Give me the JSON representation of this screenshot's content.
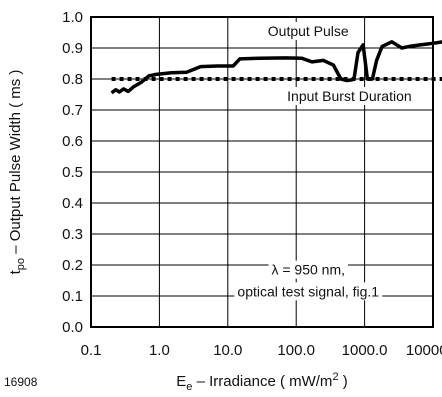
{
  "figure_id": "16908",
  "chart_data": {
    "type": "line",
    "xscale": "log",
    "xlim": [
      0.1,
      10000
    ],
    "ylim": [
      0.0,
      1.0
    ],
    "grid": true,
    "xticks": [
      "0.1",
      "1.0",
      "10.0",
      "100.0",
      "1000.0",
      "10000.0"
    ],
    "xtick_values": [
      0.1,
      1,
      10,
      100,
      1000,
      10000
    ],
    "yticks": [
      "0.0",
      "0.1",
      "0.2",
      "0.3",
      "0.4",
      "0.5",
      "0.6",
      "0.7",
      "0.8",
      "0.9",
      "1.0"
    ],
    "ytick_values": [
      0,
      0.1,
      0.2,
      0.3,
      0.4,
      0.5,
      0.6,
      0.7,
      0.8,
      0.9,
      1.0
    ],
    "ylabel_parts": {
      "sym": "t",
      "sub": "po",
      "rest": " – Output Pulse Width ( ms )"
    },
    "xlabel_parts": {
      "sym": "E",
      "sub": "e",
      "mid": " – Irradiance ( mW/m",
      "sup": "2",
      "end": " )"
    },
    "series": [
      {
        "name": "Output Pulse",
        "style": "solid",
        "color": "#000000",
        "points": [
          [
            0.2,
            0.755
          ],
          [
            0.23,
            0.765
          ],
          [
            0.26,
            0.758
          ],
          [
            0.3,
            0.768
          ],
          [
            0.35,
            0.76
          ],
          [
            0.42,
            0.775
          ],
          [
            0.55,
            0.79
          ],
          [
            0.7,
            0.81
          ],
          [
            0.9,
            0.815
          ],
          [
            1.5,
            0.82
          ],
          [
            2.5,
            0.822
          ],
          [
            4,
            0.84
          ],
          [
            7,
            0.842
          ],
          [
            12,
            0.842
          ],
          [
            15,
            0.865
          ],
          [
            30,
            0.867
          ],
          [
            70,
            0.868
          ],
          [
            120,
            0.867
          ],
          [
            170,
            0.855
          ],
          [
            250,
            0.86
          ],
          [
            350,
            0.845
          ],
          [
            450,
            0.8
          ],
          [
            550,
            0.795
          ],
          [
            650,
            0.797
          ],
          [
            700,
            0.8
          ],
          [
            800,
            0.885
          ],
          [
            950,
            0.91
          ],
          [
            1100,
            0.8
          ],
          [
            1300,
            0.8
          ],
          [
            1500,
            0.86
          ],
          [
            1800,
            0.905
          ],
          [
            2500,
            0.92
          ],
          [
            3500,
            0.9
          ],
          [
            4500,
            0.905
          ],
          [
            6500,
            0.91
          ],
          [
            10000,
            0.915
          ],
          [
            14000,
            0.92
          ]
        ]
      },
      {
        "name": "Input Burst Duration",
        "style": "dashed",
        "color": "#000000",
        "points": [
          [
            0.2,
            0.8
          ],
          [
            14000,
            0.8
          ]
        ]
      }
    ],
    "annotations": [
      {
        "text": "Output Pulse",
        "at": [
          150,
          0.955
        ]
      },
      {
        "text": "Input Burst Duration",
        "at": [
          600,
          0.745
        ]
      },
      {
        "text": "λ = 950 nm,",
        "at": [
          150,
          0.185
        ]
      },
      {
        "text": "optical test signal, fig.1",
        "at": [
          150,
          0.115
        ]
      }
    ]
  }
}
